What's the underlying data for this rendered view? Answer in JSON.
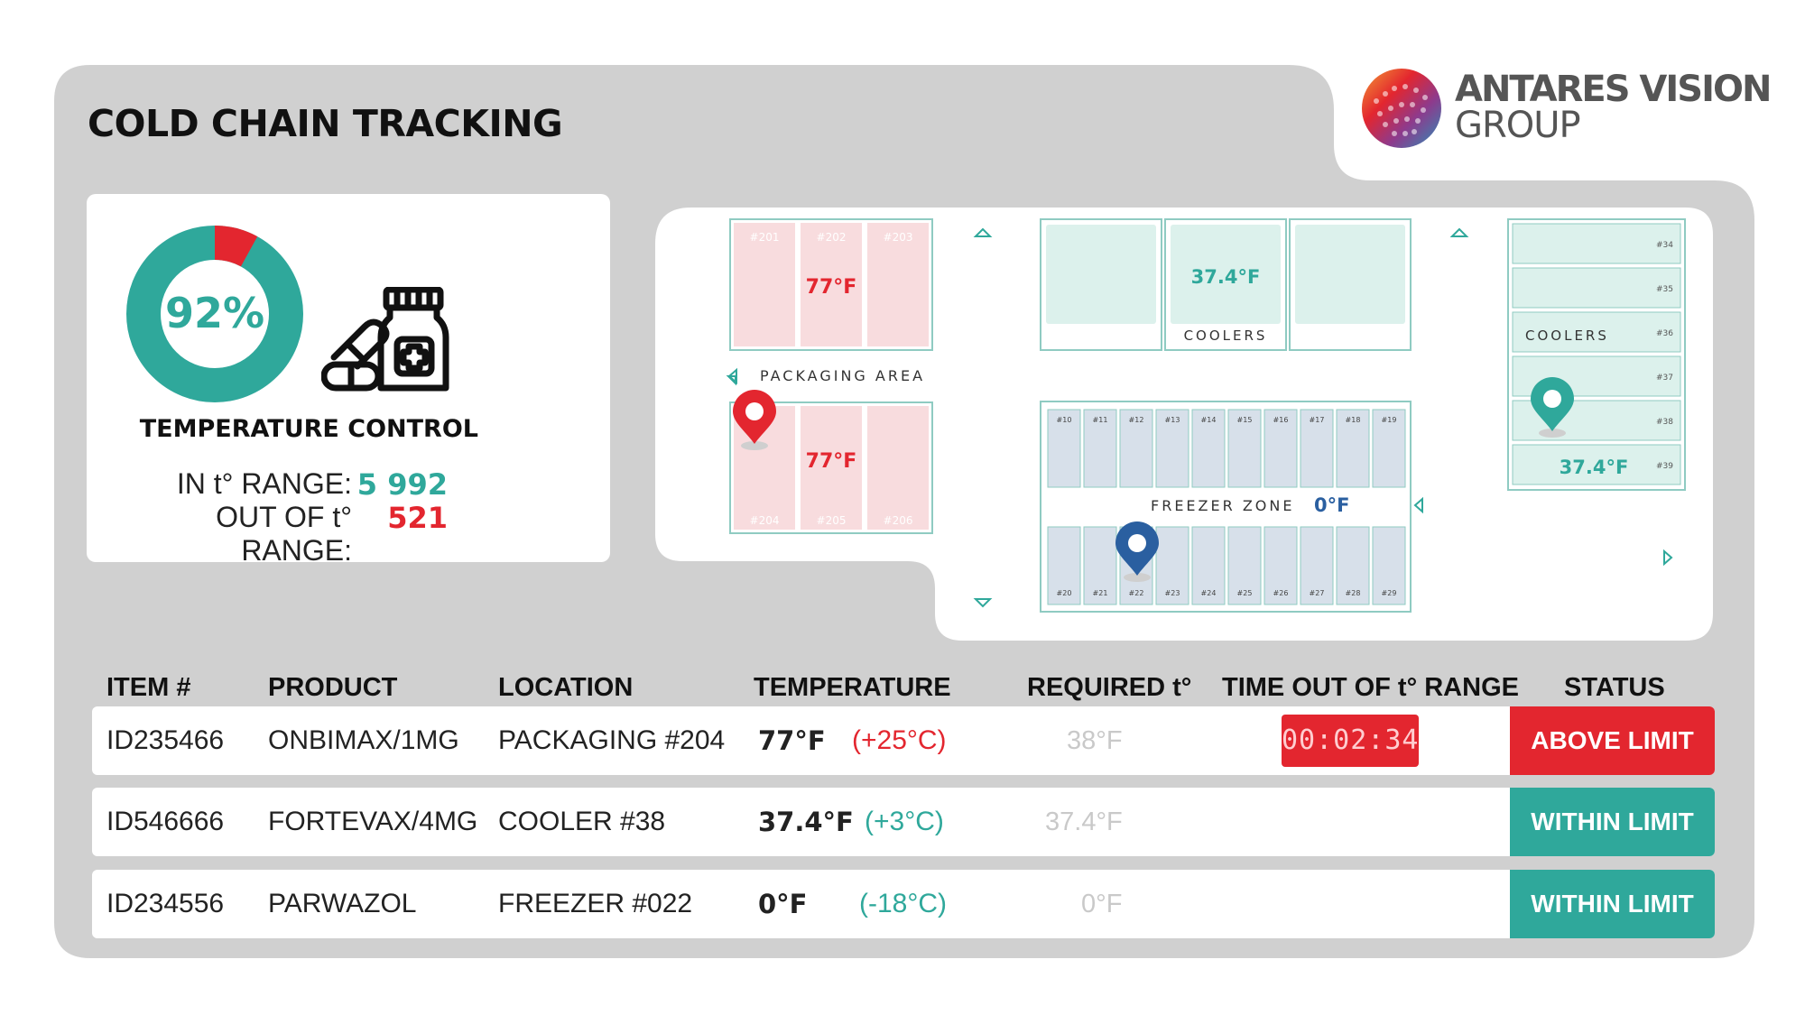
{
  "header": {
    "title": "COLD CHAIN TRACKING",
    "logo_line1": "ANTARES VISION",
    "logo_line2": "GROUP"
  },
  "kpi": {
    "percent_label": "92%",
    "percent_in_range": 0.92,
    "caption": "TEMPERATURE CONTROL",
    "in_range_label": "IN  t° RANGE:",
    "in_range_value": "5 992",
    "out_range_label": "OUT OF t° RANGE:",
    "out_range_value": "521",
    "icon": "medicine-bottle-pills-icon"
  },
  "map": {
    "packaging": {
      "label": "PACKAGING AREA",
      "top_bays": [
        "#201",
        "#202",
        "#203"
      ],
      "bottom_bays": [
        "#204",
        "#205",
        "#206"
      ],
      "top_temp": "77°F",
      "bottom_temp": "77°F"
    },
    "coolers_mid": {
      "label": "COOLERS",
      "temp": "37.4°F"
    },
    "coolers_right": {
      "label": "COOLERS",
      "bays": [
        "#34",
        "#35",
        "#36",
        "#37",
        "#38",
        "#39"
      ],
      "temp": "37.4°F"
    },
    "freezer": {
      "label": "FREEZER ZONE",
      "temp": "0°F",
      "top_bays": [
        "#10",
        "#11",
        "#12",
        "#13",
        "#14",
        "#15",
        "#16",
        "#17",
        "#18",
        "#19"
      ],
      "bottom_bays": [
        "#20",
        "#21",
        "#22",
        "#23",
        "#24",
        "#25",
        "#26",
        "#27",
        "#28",
        "#29"
      ]
    },
    "markers": [
      {
        "name": "location-pin-red-icon",
        "color": "#e3262f"
      },
      {
        "name": "location-pin-teal-icon",
        "color": "#2fa89b"
      },
      {
        "name": "location-pin-blue-icon",
        "color": "#2a5fa0"
      }
    ]
  },
  "table": {
    "headers": {
      "item": "ITEM #",
      "product": "PRODUCT",
      "location": "LOCATION",
      "temperature": "TEMPERATURE",
      "required": "REQUIRED t°",
      "time_out": "TIME OUT OF t° RANGE",
      "status": "STATUS"
    },
    "rows": [
      {
        "item": "ID235466",
        "product": "ONBIMAX/1MG",
        "location": "PACKAGING #204",
        "temp_f": "77°F",
        "temp_c": "(+25°C)",
        "required": "38°F",
        "time_out": "00:02:34",
        "status": "ABOVE LIMIT",
        "state": "above"
      },
      {
        "item": "ID546666",
        "product": "FORTEVAX/4MG",
        "location": "COOLER #38",
        "temp_f": "37.4°F",
        "temp_c": "(+3°C)",
        "required": "37.4°F",
        "time_out": "",
        "status": "WITHIN LIMIT",
        "state": "within"
      },
      {
        "item": "ID234556",
        "product": "PARWAZOL",
        "location": "FREEZER #022",
        "temp_f": "0°F",
        "temp_c": "(-18°C)",
        "required": "0°F",
        "time_out": "",
        "status": "WITHIN LIMIT",
        "state": "within"
      }
    ]
  },
  "colors": {
    "panel": "#d0d0d0",
    "teal": "#2fa89b",
    "red": "#e3262f",
    "blue": "#2a5fa0",
    "pink_bay": "#f8dcde",
    "mint_bay": "#dcf1ec",
    "ice_bay": "#d7e0ea"
  }
}
